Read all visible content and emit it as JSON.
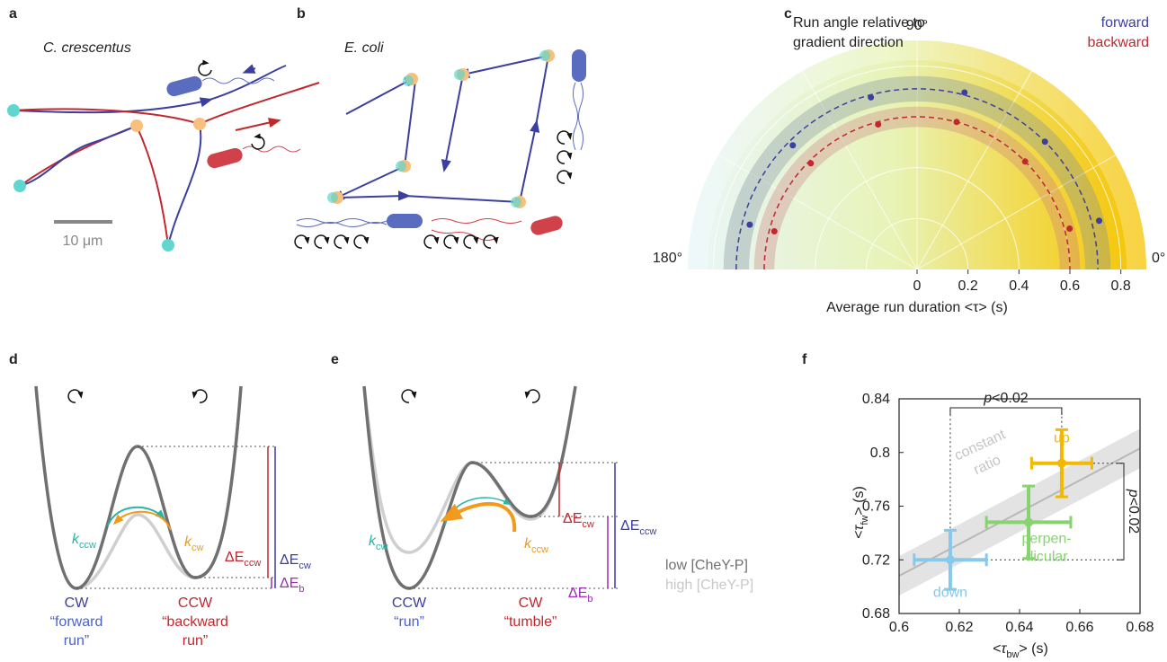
{
  "panels": {
    "a": {
      "label": "a",
      "title": "C. crescentus",
      "scale": "10 μm"
    },
    "b": {
      "label": "b",
      "title": "E. coli"
    },
    "c": {
      "label": "c"
    },
    "d": {
      "label": "d",
      "k1": {
        "base": "k",
        "sub": "ccw"
      },
      "k2": {
        "base": "k",
        "sub": "cw"
      },
      "e1": {
        "base": "ΔE",
        "sub": "ccw"
      },
      "e2": {
        "base": "ΔE",
        "sub": "cw"
      },
      "e3": {
        "base": "ΔE",
        "sub": "b"
      },
      "left_state": "CW",
      "left_desc": [
        "“forward",
        "run”"
      ],
      "right_state": "CCW",
      "right_desc": [
        "“backward",
        "run”"
      ]
    },
    "e": {
      "label": "e",
      "k1": {
        "base": "k",
        "sub": "cw"
      },
      "k2": {
        "base": "k",
        "sub": "ccw"
      },
      "e1": {
        "base": "ΔE",
        "sub": "cw"
      },
      "e2": {
        "base": "ΔE",
        "sub": "ccw"
      },
      "e3": {
        "base": "ΔE",
        "sub": "b"
      },
      "legend": [
        "low [CheY-P]",
        "high [CheY-P]"
      ],
      "left_state": "CCW",
      "left_desc": [
        "“run”"
      ],
      "right_state": "CW",
      "right_desc": [
        "“tumble”"
      ]
    },
    "f": {
      "label": "f"
    }
  },
  "chart_data": [
    {
      "type": "polar",
      "title": [
        "Run angle relative to",
        "gradient direction"
      ],
      "x_label": "Average run duration <τ> (s)",
      "theta": [
        15,
        45,
        75,
        105,
        135,
        165
      ],
      "rlim": [
        0,
        0.9
      ],
      "rticks": [
        0,
        0.2,
        0.4,
        0.6,
        0.8
      ],
      "thetaticks": [
        {
          "value": 0,
          "label": "0°"
        },
        {
          "value": 90,
          "label": "90°"
        },
        {
          "value": 180,
          "label": "180°"
        }
      ],
      "series": [
        {
          "name": "forward",
          "color": "#3b3f9f",
          "values": [
            0.74,
            0.71,
            0.72,
            0.7,
            0.69,
            0.68
          ],
          "mean": 0.71
        },
        {
          "name": "backward",
          "color": "#c0282e",
          "values": [
            0.62,
            0.6,
            0.6,
            0.59,
            0.59,
            0.58
          ],
          "mean": 0.6
        }
      ]
    },
    {
      "type": "errorbar",
      "xlabel": [
        "<τ",
        "bw",
        "> (s)"
      ],
      "ylabel": [
        "<τ",
        "fw",
        "> (s)"
      ],
      "xlim": [
        0.6,
        0.68
      ],
      "ylim": [
        0.68,
        0.84
      ],
      "xticks": [
        0.6,
        0.62,
        0.64,
        0.66,
        0.68
      ],
      "yticks": [
        0.68,
        0.72,
        0.76,
        0.8,
        0.84
      ],
      "series": [
        {
          "name": [
            "up"
          ],
          "color": "#f2b900",
          "x": 0.654,
          "y": 0.792,
          "xerr": 0.01,
          "yerr": 0.025
        },
        {
          "name": [
            "perpen-",
            "dicular"
          ],
          "color": "#86d36f",
          "x": 0.643,
          "y": 0.748,
          "xerr": 0.014,
          "yerr": 0.027
        },
        {
          "name": [
            "down"
          ],
          "color": "#86c9ea",
          "x": 0.617,
          "y": 0.72,
          "xerr": 0.012,
          "yerr": 0.022
        }
      ],
      "reference": {
        "name": [
          "constant",
          "ratio"
        ],
        "x": [
          0.6,
          0.68
        ],
        "y": [
          0.708,
          0.803
        ]
      },
      "annotations": [
        {
          "italic": "p",
          "text": "<0.02"
        },
        {
          "italic": "p",
          "text": "<0.02"
        }
      ]
    }
  ]
}
